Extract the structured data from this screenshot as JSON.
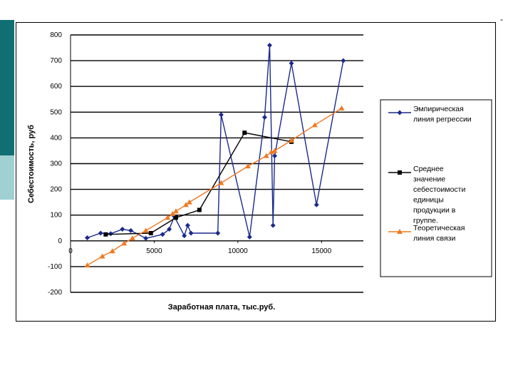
{
  "chart_data": {
    "type": "line",
    "xlabel": "Заработная плата, тыс.руб.",
    "ylabel": "Себестоимость, руб",
    "xlim": [
      0,
      17500
    ],
    "ylim": [
      -200,
      800
    ],
    "x_ticks": [
      "0",
      "5000",
      "10000",
      "15000"
    ],
    "y_ticks": [
      "800",
      "700",
      "600",
      "500",
      "400",
      "300",
      "200",
      "100",
      "0",
      "-100",
      "-200"
    ],
    "grid": "horizontal",
    "legend_position": "right",
    "series": [
      {
        "name": "Эмпирическая линия регрессии",
        "color": "#1a2a8c",
        "marker": "diamond",
        "points": [
          [
            1000,
            12
          ],
          [
            1800,
            30
          ],
          [
            2400,
            28
          ],
          [
            3100,
            45
          ],
          [
            3600,
            40
          ],
          [
            4500,
            10
          ],
          [
            5500,
            25
          ],
          [
            5900,
            45
          ],
          [
            6200,
            95
          ],
          [
            6800,
            20
          ],
          [
            7000,
            60
          ],
          [
            7200,
            30
          ],
          [
            8800,
            30
          ],
          [
            9000,
            490
          ],
          [
            10700,
            15
          ],
          [
            11600,
            480
          ],
          [
            11900,
            760
          ],
          [
            12100,
            60
          ],
          [
            12200,
            330
          ],
          [
            13200,
            690
          ],
          [
            14700,
            140
          ],
          [
            16300,
            700
          ]
        ]
      },
      {
        "name": "Среднее значение себестоимости единицы продукции в группе.",
        "color": "#000000",
        "marker": "square",
        "points": [
          [
            2100,
            25
          ],
          [
            4800,
            30
          ],
          [
            6300,
            90
          ],
          [
            7700,
            120
          ],
          [
            10400,
            420
          ],
          [
            13200,
            385
          ]
        ]
      },
      {
        "name": "Теоретическая линия связи",
        "color": "#f07820",
        "marker": "triangle",
        "points": [
          [
            1000,
            -95
          ],
          [
            1900,
            -60
          ],
          [
            2500,
            -40
          ],
          [
            3200,
            -10
          ],
          [
            3700,
            10
          ],
          [
            4500,
            40
          ],
          [
            5800,
            90
          ],
          [
            6100,
            105
          ],
          [
            6300,
            115
          ],
          [
            6900,
            140
          ],
          [
            7100,
            150
          ],
          [
            9000,
            225
          ],
          [
            10600,
            290
          ],
          [
            11700,
            330
          ],
          [
            12000,
            345
          ],
          [
            12200,
            350
          ],
          [
            13200,
            390
          ],
          [
            14600,
            450
          ],
          [
            16200,
            515
          ]
        ]
      }
    ]
  }
}
